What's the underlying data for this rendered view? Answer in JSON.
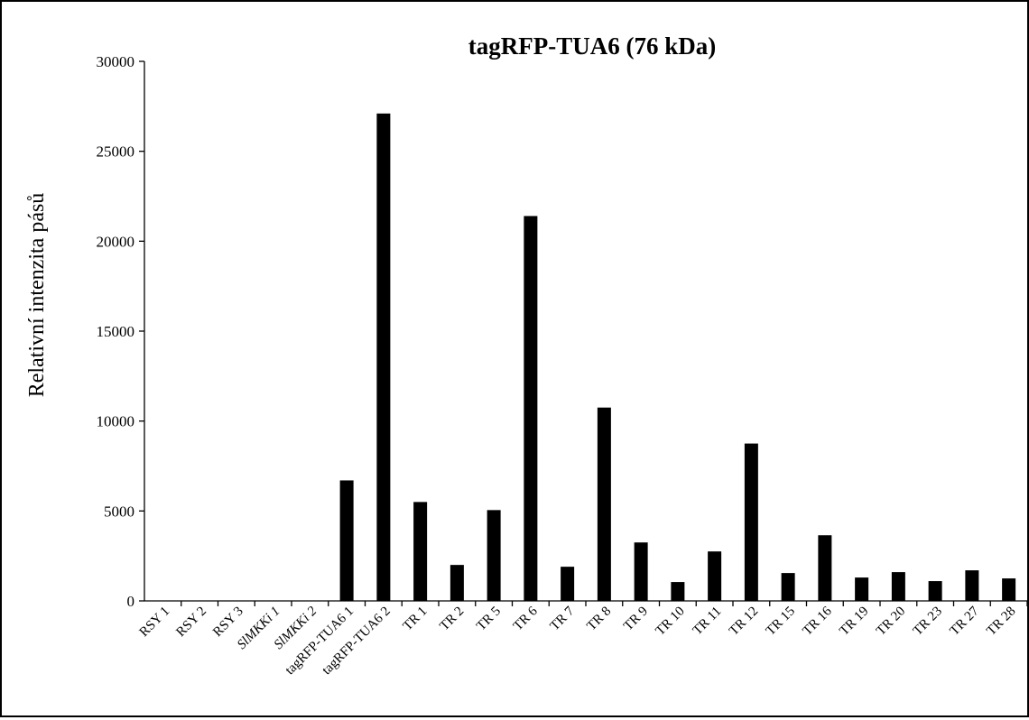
{
  "chart_data": {
    "type": "bar",
    "title": "tagRFP-TUA6 (76 kDa)",
    "ylabel": "Relativní intenzita pásů",
    "xlabel": "",
    "ylim": [
      0,
      30000
    ],
    "yticks": [
      "0",
      "5000",
      "10000",
      "15000",
      "20000",
      "25000",
      "30000"
    ],
    "grid": false,
    "legend": "none",
    "bar_color": "#000000",
    "categories": [
      "RSY 1",
      "RSY 2",
      "RSY 3",
      "SlMKKi 1",
      "SlMKKi 2",
      "tagRFP-TUA6 1",
      "tagRFP-TUA6 2",
      "TR 1",
      "TR 2",
      "TR 5",
      "TR 6",
      "TR 7",
      "TR 8",
      "TR 9",
      "TR 10",
      "TR 11",
      "TR 12",
      "TR 15",
      "TR 16",
      "TR 19",
      "TR 20",
      "TR 23",
      "TR 27",
      "TR 28"
    ],
    "italic_categories": [
      "SlMKKi 1",
      "SlMKKi 2"
    ],
    "values": [
      0,
      0,
      0,
      0,
      0,
      6700,
      27100,
      5500,
      2000,
      5050,
      21400,
      1900,
      10750,
      3250,
      1050,
      2750,
      8750,
      1550,
      3650,
      1300,
      1600,
      1100,
      1700,
      1250
    ]
  }
}
